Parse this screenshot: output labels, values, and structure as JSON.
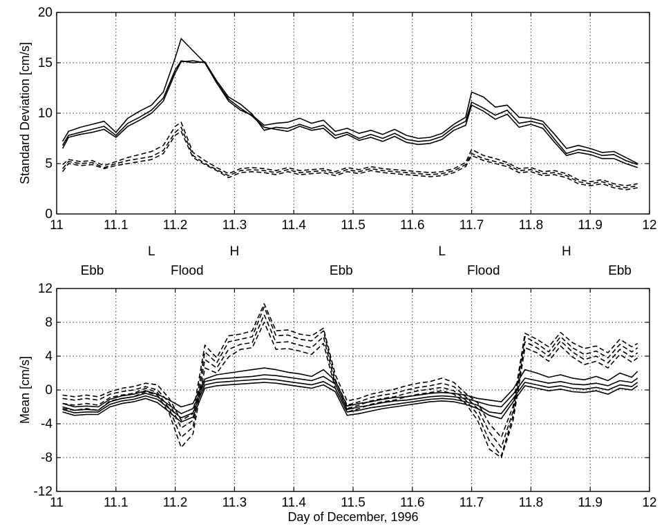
{
  "chart_data": [
    {
      "type": "line",
      "ylabel": "Standard Deviation [cm/s]",
      "xlabel": "",
      "xlim": [
        11,
        12
      ],
      "ylim": [
        0,
        20
      ],
      "xticks": [
        "11",
        "11.1",
        "11.2",
        "11.3",
        "11.4",
        "11.5",
        "11.6",
        "11.7",
        "11.8",
        "11.9",
        "12"
      ],
      "yticks": [
        "0",
        "5",
        "10",
        "15",
        "20"
      ],
      "grid": true,
      "x": [
        11.01,
        11.02,
        11.04,
        11.06,
        11.08,
        11.1,
        11.12,
        11.14,
        11.16,
        11.18,
        11.2,
        11.21,
        11.23,
        11.25,
        11.27,
        11.29,
        11.31,
        11.33,
        11.35,
        11.37,
        11.39,
        11.41,
        11.43,
        11.45,
        11.47,
        11.49,
        11.51,
        11.53,
        11.55,
        11.57,
        11.59,
        11.61,
        11.63,
        11.65,
        11.67,
        11.69,
        11.7,
        11.72,
        11.74,
        11.76,
        11.78,
        11.8,
        11.82,
        11.84,
        11.86,
        11.88,
        11.9,
        11.92,
        11.94,
        11.96,
        11.98
      ],
      "series": [
        {
          "style": "solid",
          "values": [
            6.5,
            7.6,
            7.9,
            8.1,
            8.4,
            7.6,
            8.7,
            9.3,
            10.0,
            11.2,
            14.0,
            15.1,
            15.2,
            15.0,
            13.0,
            11.4,
            10.5,
            9.7,
            8.6,
            8.4,
            8.2,
            8.7,
            8.3,
            8.5,
            7.5,
            7.9,
            7.3,
            7.6,
            7.2,
            7.7,
            7.1,
            6.9,
            7.0,
            7.4,
            8.3,
            8.8,
            10.8,
            10.2,
            9.4,
            9.9,
            8.6,
            8.9,
            8.5,
            7.1,
            5.8,
            6.1,
            5.9,
            5.5,
            5.5,
            5.0,
            4.6
          ]
        },
        {
          "style": "solid",
          "values": [
            6.8,
            7.8,
            8.1,
            8.4,
            8.7,
            7.8,
            9.0,
            9.6,
            10.3,
            11.5,
            14.3,
            15.2,
            15.0,
            15.1,
            13.2,
            11.6,
            10.9,
            9.9,
            8.3,
            8.6,
            8.5,
            8.9,
            8.5,
            8.8,
            7.8,
            8.1,
            7.5,
            7.9,
            7.5,
            8.0,
            7.4,
            7.2,
            7.3,
            7.7,
            8.6,
            9.2,
            11.1,
            10.5,
            9.8,
            10.3,
            9.0,
            9.2,
            8.9,
            7.4,
            6.0,
            6.4,
            6.2,
            5.8,
            5.9,
            5.3,
            4.9
          ]
        },
        {
          "style": "solid",
          "values": [
            7.2,
            8.2,
            8.6,
            8.9,
            9.2,
            8.1,
            9.5,
            10.2,
            10.8,
            12.1,
            15.5,
            17.4,
            16.2,
            15.0,
            13.0,
            11.2,
            10.3,
            9.8,
            8.8,
            9.0,
            9.1,
            9.5,
            9.0,
            9.3,
            8.2,
            8.5,
            8.0,
            8.3,
            7.9,
            8.4,
            7.8,
            7.5,
            7.6,
            8.0,
            8.9,
            9.6,
            12.1,
            11.6,
            10.6,
            10.8,
            9.6,
            9.5,
            9.2,
            7.9,
            6.5,
            6.8,
            6.5,
            6.1,
            6.2,
            5.6,
            5.0
          ]
        },
        {
          "style": "dashed",
          "values": [
            4.2,
            5.0,
            4.8,
            4.9,
            4.5,
            4.8,
            5.0,
            5.2,
            5.4,
            6.0,
            7.8,
            8.2,
            5.6,
            4.9,
            4.3,
            3.6,
            4.1,
            4.2,
            4.1,
            3.9,
            4.2,
            3.9,
            4.0,
            4.1,
            3.8,
            4.2,
            4.0,
            4.3,
            4.1,
            4.0,
            3.9,
            3.8,
            3.7,
            3.8,
            4.1,
            4.7,
            5.8,
            5.3,
            5.0,
            4.7,
            4.1,
            4.2,
            3.8,
            3.9,
            3.6,
            3.0,
            2.8,
            3.0,
            2.6,
            2.4,
            2.6
          ]
        },
        {
          "style": "dashed",
          "values": [
            4.9,
            5.4,
            5.2,
            5.3,
            4.8,
            5.2,
            5.6,
            5.9,
            6.2,
            6.8,
            8.7,
            9.1,
            6.1,
            5.3,
            4.6,
            4.0,
            4.5,
            4.6,
            4.5,
            4.3,
            4.6,
            4.3,
            4.4,
            4.5,
            4.2,
            4.6,
            4.4,
            4.7,
            4.5,
            4.4,
            4.3,
            4.2,
            4.1,
            4.2,
            4.5,
            5.1,
            6.4,
            5.8,
            5.5,
            5.1,
            4.5,
            4.6,
            4.2,
            4.3,
            4.0,
            3.4,
            3.2,
            3.4,
            3.0,
            2.8,
            3.0
          ]
        },
        {
          "style": "dashed",
          "values": [
            4.5,
            5.2,
            5.0,
            5.1,
            4.6,
            5.0,
            5.3,
            5.5,
            5.7,
            6.3,
            8.1,
            8.6,
            5.8,
            5.0,
            4.4,
            3.8,
            4.3,
            4.4,
            4.3,
            4.1,
            4.4,
            4.1,
            4.2,
            4.3,
            4.0,
            4.4,
            4.2,
            4.5,
            4.3,
            4.2,
            4.1,
            4.0,
            3.9,
            4.0,
            4.3,
            4.9,
            6.0,
            5.5,
            5.2,
            4.9,
            4.3,
            4.4,
            4.0,
            4.1,
            3.8,
            3.2,
            3.0,
            3.2,
            2.8,
            2.6,
            2.8
          ]
        }
      ]
    },
    {
      "type": "line",
      "ylabel": "Mean [cm/s]",
      "xlabel": "Day of December, 1996",
      "xlim": [
        11,
        12
      ],
      "ylim": [
        -12,
        12
      ],
      "xticks": [
        "11",
        "11.1",
        "11.2",
        "11.3",
        "11.4",
        "11.5",
        "11.6",
        "11.7",
        "11.8",
        "11.9",
        "12"
      ],
      "yticks": [
        "-12",
        "-8",
        "-4",
        "0",
        "4",
        "8",
        "12"
      ],
      "grid": true,
      "x": [
        11.01,
        11.03,
        11.05,
        11.07,
        11.09,
        11.11,
        11.13,
        11.15,
        11.17,
        11.19,
        11.21,
        11.23,
        11.25,
        11.27,
        11.29,
        11.31,
        11.33,
        11.35,
        11.37,
        11.39,
        11.41,
        11.43,
        11.45,
        11.47,
        11.49,
        11.51,
        11.53,
        11.55,
        11.57,
        11.59,
        11.61,
        11.63,
        11.65,
        11.67,
        11.69,
        11.71,
        11.73,
        11.75,
        11.77,
        11.79,
        11.81,
        11.83,
        11.85,
        11.87,
        11.89,
        11.91,
        11.93,
        11.95,
        11.97,
        11.98
      ],
      "series": [
        {
          "style": "solid",
          "values": [
            -2.0,
            -2.4,
            -2.3,
            -2.4,
            -1.4,
            -1.0,
            -0.8,
            -0.4,
            -0.8,
            -1.8,
            -2.8,
            -2.2,
            1.0,
            1.3,
            1.4,
            1.5,
            1.6,
            1.8,
            1.7,
            1.5,
            1.3,
            1.1,
            1.6,
            0.7,
            -2.3,
            -2.0,
            -1.8,
            -1.5,
            -1.3,
            -1.2,
            -1.0,
            -0.8,
            -0.7,
            -0.8,
            -1.0,
            -1.4,
            -1.8,
            -2.0,
            -0.5,
            1.4,
            1.1,
            0.8,
            1.0,
            0.7,
            0.6,
            0.8,
            0.5,
            1.1,
            0.9,
            1.4
          ]
        },
        {
          "style": "solid",
          "values": [
            -2.3,
            -2.7,
            -2.6,
            -2.6,
            -1.7,
            -1.3,
            -1.1,
            -0.7,
            -1.1,
            -2.2,
            -3.3,
            -2.7,
            0.6,
            0.9,
            1.0,
            1.1,
            1.2,
            1.3,
            1.2,
            1.0,
            0.8,
            0.6,
            1.0,
            0.2,
            -2.6,
            -2.4,
            -2.1,
            -1.9,
            -1.7,
            -1.5,
            -1.3,
            -1.1,
            -1.0,
            -1.1,
            -1.4,
            -1.8,
            -2.6,
            -2.8,
            -1.0,
            0.9,
            0.6,
            0.3,
            0.5,
            0.2,
            0.1,
            0.3,
            0.0,
            0.6,
            0.4,
            0.9
          ]
        },
        {
          "style": "solid",
          "values": [
            -2.6,
            -3.0,
            -2.9,
            -2.9,
            -2.0,
            -1.6,
            -1.4,
            -1.0,
            -1.5,
            -2.6,
            -3.8,
            -3.2,
            0.2,
            0.5,
            0.6,
            0.7,
            0.8,
            0.9,
            0.8,
            0.6,
            0.4,
            0.2,
            0.6,
            -0.2,
            -3.0,
            -2.8,
            -2.5,
            -2.2,
            -2.0,
            -1.8,
            -1.6,
            -1.4,
            -1.3,
            -1.4,
            -1.7,
            -2.2,
            -3.0,
            -3.4,
            -1.4,
            0.5,
            0.2,
            -0.1,
            0.1,
            -0.2,
            -0.3,
            -0.1,
            -0.5,
            0.2,
            0.0,
            0.5
          ]
        },
        {
          "style": "solid",
          "values": [
            -1.6,
            -2.0,
            -1.9,
            -2.0,
            -1.1,
            -0.7,
            -0.5,
            -0.1,
            -0.5,
            -1.2,
            -2.0,
            -1.6,
            1.3,
            1.8,
            2.0,
            2.2,
            2.4,
            2.6,
            2.4,
            2.1,
            1.9,
            1.6,
            2.4,
            1.1,
            -1.9,
            -1.6,
            -1.4,
            -1.1,
            -0.9,
            -0.8,
            -0.6,
            -0.4,
            -0.3,
            -0.4,
            -0.6,
            -1.0,
            -1.2,
            -1.4,
            0.1,
            2.4,
            2.0,
            1.5,
            1.8,
            1.4,
            1.2,
            1.6,
            1.1,
            2.0,
            1.5,
            2.2
          ]
        },
        {
          "style": "dashed",
          "values": [
            -1.0,
            -1.2,
            -1.0,
            -1.2,
            -0.5,
            -0.2,
            0.0,
            0.4,
            0.0,
            -1.5,
            -4.5,
            -3.6,
            4.5,
            3.2,
            5.7,
            6.0,
            6.3,
            9.8,
            6.4,
            6.5,
            6.0,
            5.8,
            7.0,
            1.2,
            -1.8,
            -1.4,
            -0.9,
            -0.6,
            -0.4,
            0.0,
            0.3,
            0.5,
            0.8,
            0.4,
            -0.8,
            -2.2,
            -5.0,
            -6.8,
            -2.5,
            6.3,
            5.5,
            4.5,
            6.3,
            5.0,
            4.2,
            4.6,
            3.8,
            5.4,
            4.5,
            5.0
          ]
        },
        {
          "style": "dashed",
          "values": [
            -1.6,
            -1.8,
            -1.6,
            -1.8,
            -0.9,
            -0.6,
            -0.4,
            0.2,
            -0.3,
            -2.2,
            -5.6,
            -4.4,
            3.6,
            2.6,
            4.8,
            5.4,
            5.6,
            8.9,
            5.6,
            5.7,
            5.3,
            5.0,
            6.3,
            0.7,
            -2.2,
            -1.8,
            -1.3,
            -1.0,
            -0.8,
            -0.4,
            -0.1,
            0.1,
            0.3,
            -0.1,
            -1.2,
            -2.9,
            -6.0,
            -7.8,
            -3.0,
            5.7,
            5.0,
            4.0,
            5.8,
            4.5,
            3.6,
            4.0,
            3.2,
            4.8,
            3.9,
            4.4
          ]
        },
        {
          "style": "dashed",
          "values": [
            -2.2,
            -2.4,
            -2.2,
            -2.4,
            -1.3,
            -1.0,
            -0.8,
            -0.2,
            -0.6,
            -2.8,
            -6.8,
            -5.2,
            2.6,
            2.0,
            3.9,
            4.8,
            5.0,
            8.0,
            4.8,
            4.9,
            4.6,
            4.2,
            5.5,
            0.2,
            -2.6,
            -2.2,
            -1.7,
            -1.4,
            -1.2,
            -0.8,
            -0.5,
            -0.3,
            -0.1,
            -0.5,
            -1.6,
            -3.6,
            -7.0,
            -8.0,
            -3.6,
            5.0,
            4.4,
            3.4,
            5.2,
            3.9,
            3.0,
            3.4,
            2.6,
            4.2,
            3.3,
            3.8
          ]
        },
        {
          "style": "dashed",
          "values": [
            -0.6,
            -0.8,
            -0.6,
            -0.8,
            -0.2,
            0.2,
            0.4,
            0.8,
            0.6,
            -1.0,
            -3.6,
            -2.8,
            5.3,
            3.8,
            6.4,
            6.6,
            7.0,
            10.2,
            7.0,
            7.1,
            6.6,
            6.4,
            7.3,
            1.8,
            -1.3,
            -1.0,
            -0.5,
            -0.2,
            0.1,
            0.5,
            0.8,
            1.0,
            1.4,
            0.9,
            -0.4,
            -1.5,
            -4.0,
            -5.6,
            -1.9,
            6.7,
            6.0,
            5.1,
            6.8,
            5.6,
            4.9,
            5.2,
            4.4,
            6.0,
            5.1,
            5.5
          ]
        }
      ]
    }
  ],
  "annotations": {
    "tide_markers": [
      {
        "label": "L",
        "x": 11.16
      },
      {
        "label": "H",
        "x": 11.3
      },
      {
        "label": "L",
        "x": 11.65
      },
      {
        "label": "H",
        "x": 11.86
      }
    ],
    "phases": [
      {
        "label": "Ebb",
        "x": 11.06
      },
      {
        "label": "Flood",
        "x": 11.22
      },
      {
        "label": "Ebb",
        "x": 11.48
      },
      {
        "label": "Flood",
        "x": 11.72
      },
      {
        "label": "Ebb",
        "x": 11.95
      }
    ]
  }
}
